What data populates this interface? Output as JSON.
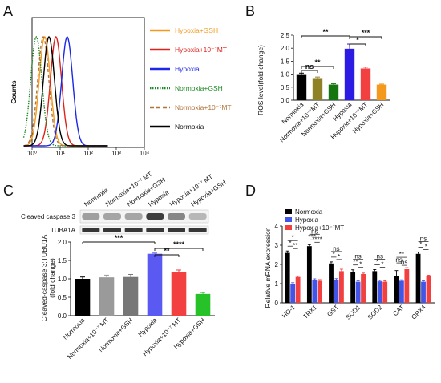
{
  "chart_data": [
    {
      "panel": "A",
      "type": "line",
      "ylabel": "Counts",
      "x_tick_labels": [
        "10⁰",
        "10¹",
        "10²",
        "10³",
        "10⁴"
      ],
      "series": [
        {
          "name": "Hypoxia+GSH",
          "color": "#F39A1E",
          "style": "solid",
          "peak_log10": 0.45
        },
        {
          "name": "Hypoxia+10⁻⁷MT",
          "color": "#E0201B",
          "style": "solid",
          "peak_log10": 0.85
        },
        {
          "name": "Hypoxia",
          "color": "#1C27E8",
          "style": "solid",
          "peak_log10": 1.25
        },
        {
          "name": "Normoxia+GSH",
          "color": "#1E8B25",
          "style": "dotted",
          "peak_log10": 0.15
        },
        {
          "name": "Normoxia+10⁻⁷MT",
          "color": "#B0733A",
          "style": "dashed",
          "peak_log10": 0.4
        },
        {
          "name": "Normoxia",
          "color": "#000000",
          "style": "solid",
          "peak_log10": 0.6
        }
      ]
    },
    {
      "panel": "B",
      "type": "bar",
      "ylabel": "ROS level(fold change)",
      "ylim": [
        0,
        2.5
      ],
      "yticks": [
        "0.0",
        "0.5",
        "1.0",
        "1.5",
        "2.0",
        "2.5"
      ],
      "categories": [
        "Normoxia",
        "Normoxia+10⁻⁷MT",
        "Normoxia+GSH",
        "Hypoxia",
        "Hypoxia+10⁻⁷MT",
        "Hypoxia+GSH"
      ],
      "values": [
        1.0,
        0.85,
        0.6,
        1.98,
        1.22,
        0.6
      ],
      "errors": [
        0.04,
        0.04,
        0.03,
        0.18,
        0.05,
        0.02
      ],
      "colors": [
        "#000000",
        "#8E8126",
        "#16750F",
        "#2B1BE3",
        "#F23F3F",
        "#F39A1E"
      ],
      "significance": [
        {
          "from": 0,
          "to": 1,
          "label": "ns"
        },
        {
          "from": 0,
          "to": 2,
          "label": "**"
        },
        {
          "from": 0,
          "to": 3,
          "label": "**"
        },
        {
          "from": 3,
          "to": 4,
          "label": "*"
        },
        {
          "from": 3,
          "to": 5,
          "label": "***"
        }
      ]
    },
    {
      "panel": "C",
      "type": "bar",
      "blot_columns": [
        "Normoxia",
        "Normoxia+10⁻⁷ MT",
        "Normoxia+GSH",
        "Hypoxia",
        "Hypoxia+10⁻⁷ MT",
        "Hypoxia+GSH"
      ],
      "blot_rows": [
        "Cleaved caspase 3",
        "TUBA1A"
      ],
      "ylabel": "Cleaved-caspase 3:TUBU1A\n(fold change)",
      "ylim": [
        0,
        2.0
      ],
      "yticks": [
        "0.0",
        "0.5",
        "1.0",
        "1.5",
        "2.0"
      ],
      "categories": [
        "Normoxia",
        "Normoxia+10⁻⁷ MT",
        "Normoxia+GSH",
        "Hypoxia",
        "Hypoxia+10⁻⁷ MT",
        "Hypoxia+GSH"
      ],
      "values": [
        1.0,
        1.04,
        1.05,
        1.68,
        1.19,
        0.59
      ],
      "errors": [
        0.05,
        0.06,
        0.07,
        0.02,
        0.05,
        0.04
      ],
      "colors": [
        "#000000",
        "#9A9A9A",
        "#777777",
        "#5A5AF2",
        "#F23F3F",
        "#27C227"
      ],
      "significance": [
        {
          "from": 0,
          "to": 3,
          "label": "***"
        },
        {
          "from": 3,
          "to": 4,
          "label": "**"
        },
        {
          "from": 3,
          "to": 5,
          "label": "****"
        }
      ]
    },
    {
      "panel": "D",
      "type": "bar",
      "ylabel": "Relative mRNA expression",
      "ylim": [
        0,
        4
      ],
      "yticks": [
        "0",
        "1",
        "2",
        "3",
        "4"
      ],
      "categories": [
        "HO-1",
        "TRX1",
        "GST",
        "SOD1",
        "SOD2",
        "CAT",
        "GPX4"
      ],
      "series": [
        {
          "name": "Normoxia",
          "color": "#000000",
          "values": [
            2.6,
            2.95,
            2.05,
            1.62,
            1.65,
            1.38,
            2.55
          ],
          "errors": [
            0.1,
            0.08,
            0.08,
            0.1,
            0.08,
            0.3,
            0.1
          ]
        },
        {
          "name": "Hypoxia",
          "color": "#4355E6",
          "values": [
            1.0,
            1.2,
            1.2,
            1.1,
            1.12,
            1.15,
            1.1
          ],
          "errors": [
            0.05,
            0.05,
            0.06,
            0.05,
            0.05,
            0.05,
            0.05
          ]
        },
        {
          "name": "Hypoxia+10⁻⁷MT",
          "color": "#F23F3F",
          "values": [
            1.35,
            1.15,
            1.65,
            1.5,
            1.1,
            1.75,
            1.38
          ],
          "errors": [
            0.05,
            0.06,
            0.1,
            0.05,
            0.05,
            0.08,
            0.06
          ]
        }
      ],
      "sig_labels": [
        [
          "*",
          "**",
          "*"
        ],
        [
          "***",
          "****",
          "ns"
        ],
        [
          "*",
          "*",
          "ns"
        ],
        [
          "**",
          "*",
          "ns"
        ],
        [
          "*",
          "*",
          "ns"
        ],
        [
          "ns",
          "ns",
          "**"
        ],
        [
          "*",
          "*",
          "ns"
        ]
      ]
    }
  ],
  "panels": {
    "A": "A",
    "B": "B",
    "C": "C",
    "D": "D"
  }
}
